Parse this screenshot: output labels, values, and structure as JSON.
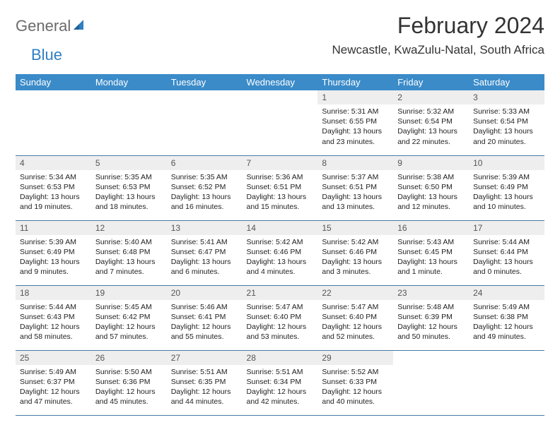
{
  "brand": {
    "part1": "General",
    "part2": "Blue"
  },
  "title": "February 2024",
  "location": "Newcastle, KwaZulu-Natal, South Africa",
  "colors": {
    "header_bg": "#3b8bc9",
    "daynum_bg": "#eeeeee",
    "border": "#4a7ba8",
    "logo_gray": "#6b6b6b",
    "logo_blue": "#2f7fc2"
  },
  "day_headers": [
    "Sunday",
    "Monday",
    "Tuesday",
    "Wednesday",
    "Thursday",
    "Friday",
    "Saturday"
  ],
  "weeks": [
    [
      null,
      null,
      null,
      null,
      {
        "n": "1",
        "sr": "Sunrise: 5:31 AM",
        "ss": "Sunset: 6:55 PM",
        "dl1": "Daylight: 13 hours",
        "dl2": "and 23 minutes."
      },
      {
        "n": "2",
        "sr": "Sunrise: 5:32 AM",
        "ss": "Sunset: 6:54 PM",
        "dl1": "Daylight: 13 hours",
        "dl2": "and 22 minutes."
      },
      {
        "n": "3",
        "sr": "Sunrise: 5:33 AM",
        "ss": "Sunset: 6:54 PM",
        "dl1": "Daylight: 13 hours",
        "dl2": "and 20 minutes."
      }
    ],
    [
      {
        "n": "4",
        "sr": "Sunrise: 5:34 AM",
        "ss": "Sunset: 6:53 PM",
        "dl1": "Daylight: 13 hours",
        "dl2": "and 19 minutes."
      },
      {
        "n": "5",
        "sr": "Sunrise: 5:35 AM",
        "ss": "Sunset: 6:53 PM",
        "dl1": "Daylight: 13 hours",
        "dl2": "and 18 minutes."
      },
      {
        "n": "6",
        "sr": "Sunrise: 5:35 AM",
        "ss": "Sunset: 6:52 PM",
        "dl1": "Daylight: 13 hours",
        "dl2": "and 16 minutes."
      },
      {
        "n": "7",
        "sr": "Sunrise: 5:36 AM",
        "ss": "Sunset: 6:51 PM",
        "dl1": "Daylight: 13 hours",
        "dl2": "and 15 minutes."
      },
      {
        "n": "8",
        "sr": "Sunrise: 5:37 AM",
        "ss": "Sunset: 6:51 PM",
        "dl1": "Daylight: 13 hours",
        "dl2": "and 13 minutes."
      },
      {
        "n": "9",
        "sr": "Sunrise: 5:38 AM",
        "ss": "Sunset: 6:50 PM",
        "dl1": "Daylight: 13 hours",
        "dl2": "and 12 minutes."
      },
      {
        "n": "10",
        "sr": "Sunrise: 5:39 AM",
        "ss": "Sunset: 6:49 PM",
        "dl1": "Daylight: 13 hours",
        "dl2": "and 10 minutes."
      }
    ],
    [
      {
        "n": "11",
        "sr": "Sunrise: 5:39 AM",
        "ss": "Sunset: 6:49 PM",
        "dl1": "Daylight: 13 hours",
        "dl2": "and 9 minutes."
      },
      {
        "n": "12",
        "sr": "Sunrise: 5:40 AM",
        "ss": "Sunset: 6:48 PM",
        "dl1": "Daylight: 13 hours",
        "dl2": "and 7 minutes."
      },
      {
        "n": "13",
        "sr": "Sunrise: 5:41 AM",
        "ss": "Sunset: 6:47 PM",
        "dl1": "Daylight: 13 hours",
        "dl2": "and 6 minutes."
      },
      {
        "n": "14",
        "sr": "Sunrise: 5:42 AM",
        "ss": "Sunset: 6:46 PM",
        "dl1": "Daylight: 13 hours",
        "dl2": "and 4 minutes."
      },
      {
        "n": "15",
        "sr": "Sunrise: 5:42 AM",
        "ss": "Sunset: 6:46 PM",
        "dl1": "Daylight: 13 hours",
        "dl2": "and 3 minutes."
      },
      {
        "n": "16",
        "sr": "Sunrise: 5:43 AM",
        "ss": "Sunset: 6:45 PM",
        "dl1": "Daylight: 13 hours",
        "dl2": "and 1 minute."
      },
      {
        "n": "17",
        "sr": "Sunrise: 5:44 AM",
        "ss": "Sunset: 6:44 PM",
        "dl1": "Daylight: 13 hours",
        "dl2": "and 0 minutes."
      }
    ],
    [
      {
        "n": "18",
        "sr": "Sunrise: 5:44 AM",
        "ss": "Sunset: 6:43 PM",
        "dl1": "Daylight: 12 hours",
        "dl2": "and 58 minutes."
      },
      {
        "n": "19",
        "sr": "Sunrise: 5:45 AM",
        "ss": "Sunset: 6:42 PM",
        "dl1": "Daylight: 12 hours",
        "dl2": "and 57 minutes."
      },
      {
        "n": "20",
        "sr": "Sunrise: 5:46 AM",
        "ss": "Sunset: 6:41 PM",
        "dl1": "Daylight: 12 hours",
        "dl2": "and 55 minutes."
      },
      {
        "n": "21",
        "sr": "Sunrise: 5:47 AM",
        "ss": "Sunset: 6:40 PM",
        "dl1": "Daylight: 12 hours",
        "dl2": "and 53 minutes."
      },
      {
        "n": "22",
        "sr": "Sunrise: 5:47 AM",
        "ss": "Sunset: 6:40 PM",
        "dl1": "Daylight: 12 hours",
        "dl2": "and 52 minutes."
      },
      {
        "n": "23",
        "sr": "Sunrise: 5:48 AM",
        "ss": "Sunset: 6:39 PM",
        "dl1": "Daylight: 12 hours",
        "dl2": "and 50 minutes."
      },
      {
        "n": "24",
        "sr": "Sunrise: 5:49 AM",
        "ss": "Sunset: 6:38 PM",
        "dl1": "Daylight: 12 hours",
        "dl2": "and 49 minutes."
      }
    ],
    [
      {
        "n": "25",
        "sr": "Sunrise: 5:49 AM",
        "ss": "Sunset: 6:37 PM",
        "dl1": "Daylight: 12 hours",
        "dl2": "and 47 minutes."
      },
      {
        "n": "26",
        "sr": "Sunrise: 5:50 AM",
        "ss": "Sunset: 6:36 PM",
        "dl1": "Daylight: 12 hours",
        "dl2": "and 45 minutes."
      },
      {
        "n": "27",
        "sr": "Sunrise: 5:51 AM",
        "ss": "Sunset: 6:35 PM",
        "dl1": "Daylight: 12 hours",
        "dl2": "and 44 minutes."
      },
      {
        "n": "28",
        "sr": "Sunrise: 5:51 AM",
        "ss": "Sunset: 6:34 PM",
        "dl1": "Daylight: 12 hours",
        "dl2": "and 42 minutes."
      },
      {
        "n": "29",
        "sr": "Sunrise: 5:52 AM",
        "ss": "Sunset: 6:33 PM",
        "dl1": "Daylight: 12 hours",
        "dl2": "and 40 minutes."
      },
      null,
      null
    ]
  ]
}
